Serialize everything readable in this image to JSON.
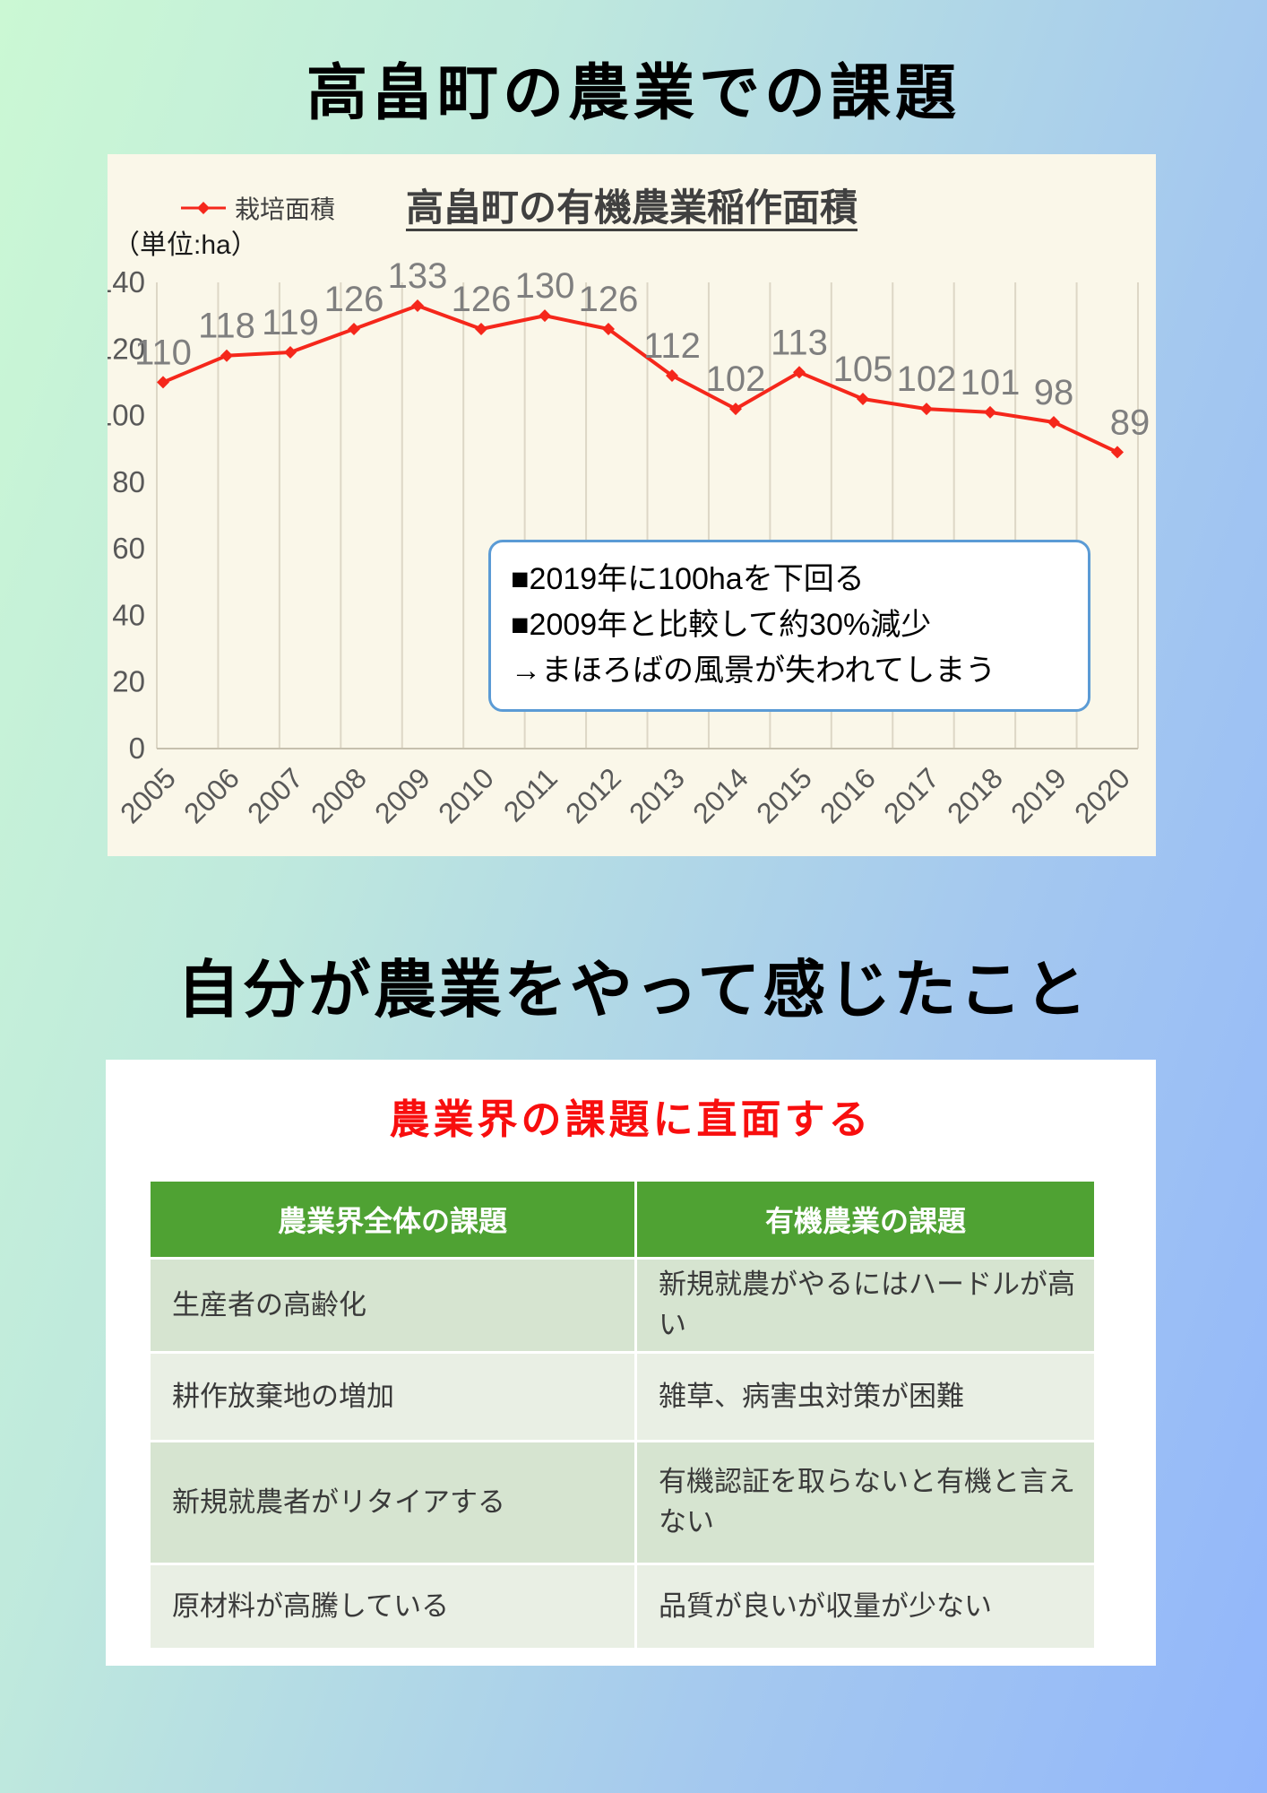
{
  "page": {
    "title1": "高畠町の農業での課題",
    "title2": "自分が農業をやって感じたこと"
  },
  "chart": {
    "legend_label": "栽培面積",
    "unit_label": "（単位:ha）",
    "note_text": "■2019年に100haを下回る\n■2009年と比較して約30%減少\n→まほろばの風景が失われてしまう"
  },
  "chart_data": {
    "type": "line",
    "title": "高畠町の有機農業稲作面積",
    "ylabel": "ha",
    "x": [
      "2005",
      "2006",
      "2007",
      "2008",
      "2009",
      "2010",
      "2011",
      "2012",
      "2013",
      "2014",
      "2015",
      "2016",
      "2017",
      "2018",
      "2019",
      "2020"
    ],
    "series": [
      {
        "name": "栽培面積",
        "values": [
          110,
          118,
          119,
          126,
          133,
          126,
          130,
          126,
          112,
          102,
          113,
          105,
          102,
          101,
          98,
          89
        ]
      }
    ],
    "ylim": [
      0,
      140
    ],
    "ytick_step": 20,
    "grid": "vertical-only",
    "legend_position": "top-left",
    "line_color": "#f5271b",
    "label_color": "#7f7f7f",
    "axis_color": "#c6c0ae",
    "grid_color": "#ddd7c6",
    "tick_color": "#595959",
    "plot_bg": "#faf7e9"
  },
  "table": {
    "caption": "農業界の課題に直面する",
    "headers": [
      "農業界全体の課題",
      "有機農業の課題"
    ],
    "rows": [
      {
        "left": "生産者の高齢化",
        "right": "新規就農がやるにはハードルが高い"
      },
      {
        "left": "耕作放棄地の増加",
        "right": "雑草、病害虫対策が困難"
      },
      {
        "left": "新規就農者がリタイアする",
        "right": "有機認証を取らないと有機と言えない"
      },
      {
        "left": "原材料が高騰している",
        "right": "品質が良いが収量が少ない"
      }
    ],
    "header_bg": "#4fa233",
    "row_bg_odd": "#d6e4d0",
    "row_bg_even": "#e9efe4"
  }
}
